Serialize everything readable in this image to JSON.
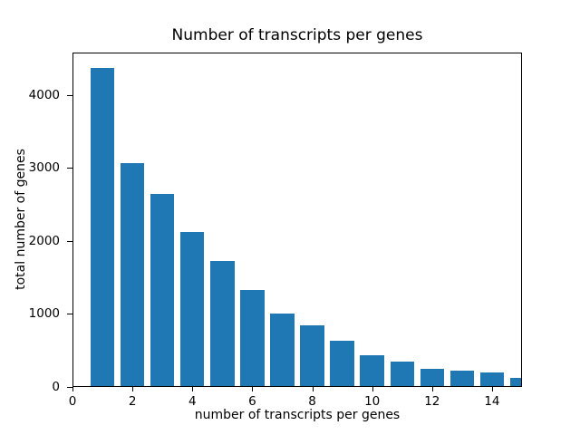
{
  "figure": {
    "background_color": "#ffffff",
    "text_color": "#000000"
  },
  "chart_data": {
    "type": "bar",
    "title": "Number of transcripts per genes",
    "xlabel": "number of transcripts per genes",
    "ylabel": "total number of genes",
    "x": [
      1,
      2,
      3,
      4,
      5,
      6,
      7,
      8,
      9,
      10,
      11,
      12,
      13,
      14,
      15
    ],
    "values": [
      4370,
      3060,
      2640,
      2120,
      1720,
      1330,
      1000,
      845,
      635,
      430,
      350,
      250,
      225,
      200,
      125
    ],
    "bar_color": "#1f77b4",
    "bar_width": 0.8,
    "xlim": [
      0,
      15
    ],
    "ylim": [
      0,
      4580
    ],
    "xticks": [
      0,
      2,
      4,
      6,
      8,
      10,
      12,
      14
    ],
    "yticks": [
      0,
      1000,
      2000,
      3000,
      4000
    ],
    "grid": false,
    "legend": null
  }
}
